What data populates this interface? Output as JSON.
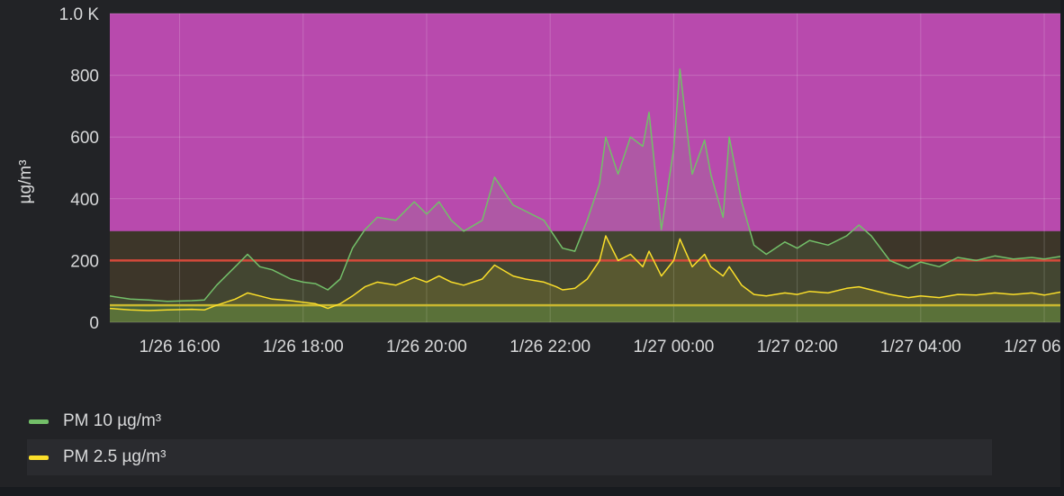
{
  "chart_data": {
    "type": "line",
    "ylabel": "µg/m³",
    "xlabel": "",
    "title": "",
    "ylim": [
      0,
      1000
    ],
    "yticks": [
      {
        "value": 0,
        "label": "0"
      },
      {
        "value": 200,
        "label": "200"
      },
      {
        "value": 400,
        "label": "400"
      },
      {
        "value": 600,
        "label": "600"
      },
      {
        "value": 800,
        "label": "800"
      },
      {
        "value": 1000,
        "label": "1.0 K"
      }
    ],
    "xticks": [
      {
        "hour": 16,
        "label": "1/26 16:00"
      },
      {
        "hour": 18,
        "label": "1/26 18:00"
      },
      {
        "hour": 20,
        "label": "1/26 20:00"
      },
      {
        "hour": 22,
        "label": "1/26 22:00"
      },
      {
        "hour": 24,
        "label": "1/27 00:00"
      },
      {
        "hour": 26,
        "label": "1/27 02:00"
      },
      {
        "hour": 28,
        "label": "1/27 04:00"
      },
      {
        "hour": 30,
        "label": "1/27 06:00"
      }
    ],
    "xrange_hours": [
      14.87,
      30.32
    ],
    "grid": true,
    "legend_position": "bottom-left",
    "threshold_bands": [
      {
        "from": 0,
        "to": 60,
        "color": "#3f5636"
      },
      {
        "from": 60,
        "to": 295,
        "color": "#3d3629"
      },
      {
        "from": 295,
        "to": 1000,
        "color": "#b84aad"
      }
    ],
    "threshold_lines": [
      {
        "value": 200,
        "color": "#d44a3a"
      },
      {
        "value": 55,
        "color": "#c9b62f"
      }
    ],
    "series": [
      {
        "name": "PM 10 µg/m³",
        "color": "#73bf69",
        "points": [
          [
            14.87,
            85
          ],
          [
            15.2,
            75
          ],
          [
            15.5,
            72
          ],
          [
            15.8,
            68
          ],
          [
            16.2,
            70
          ],
          [
            16.4,
            72
          ],
          [
            16.6,
            120
          ],
          [
            16.9,
            180
          ],
          [
            17.1,
            220
          ],
          [
            17.3,
            180
          ],
          [
            17.5,
            170
          ],
          [
            17.8,
            140
          ],
          [
            18.0,
            130
          ],
          [
            18.2,
            125
          ],
          [
            18.4,
            105
          ],
          [
            18.6,
            140
          ],
          [
            18.8,
            240
          ],
          [
            19.0,
            300
          ],
          [
            19.2,
            340
          ],
          [
            19.5,
            330
          ],
          [
            19.8,
            390
          ],
          [
            20.0,
            350
          ],
          [
            20.2,
            390
          ],
          [
            20.4,
            330
          ],
          [
            20.6,
            295
          ],
          [
            20.9,
            330
          ],
          [
            21.1,
            470
          ],
          [
            21.4,
            380
          ],
          [
            21.6,
            360
          ],
          [
            21.9,
            330
          ],
          [
            22.1,
            270
          ],
          [
            22.2,
            240
          ],
          [
            22.4,
            230
          ],
          [
            22.6,
            330
          ],
          [
            22.8,
            450
          ],
          [
            22.9,
            600
          ],
          [
            23.1,
            480
          ],
          [
            23.3,
            600
          ],
          [
            23.5,
            570
          ],
          [
            23.6,
            680
          ],
          [
            23.8,
            300
          ],
          [
            24.0,
            560
          ],
          [
            24.1,
            820
          ],
          [
            24.3,
            480
          ],
          [
            24.5,
            590
          ],
          [
            24.6,
            480
          ],
          [
            24.8,
            340
          ],
          [
            24.9,
            600
          ],
          [
            25.1,
            390
          ],
          [
            25.3,
            250
          ],
          [
            25.5,
            220
          ],
          [
            25.8,
            260
          ],
          [
            26.0,
            240
          ],
          [
            26.2,
            265
          ],
          [
            26.5,
            250
          ],
          [
            26.8,
            280
          ],
          [
            27.0,
            315
          ],
          [
            27.2,
            280
          ],
          [
            27.5,
            200
          ],
          [
            27.8,
            175
          ],
          [
            28.0,
            195
          ],
          [
            28.3,
            180
          ],
          [
            28.6,
            210
          ],
          [
            28.9,
            200
          ],
          [
            29.2,
            215
          ],
          [
            29.5,
            205
          ],
          [
            29.8,
            210
          ],
          [
            30.0,
            205
          ],
          [
            30.32,
            215
          ]
        ]
      },
      {
        "name": "PM 2.5 µg/m³",
        "color": "#fade2a",
        "points": [
          [
            14.87,
            45
          ],
          [
            15.2,
            40
          ],
          [
            15.5,
            38
          ],
          [
            15.8,
            40
          ],
          [
            16.2,
            42
          ],
          [
            16.4,
            40
          ],
          [
            16.6,
            55
          ],
          [
            16.9,
            75
          ],
          [
            17.1,
            95
          ],
          [
            17.3,
            85
          ],
          [
            17.5,
            75
          ],
          [
            17.8,
            70
          ],
          [
            18.0,
            65
          ],
          [
            18.2,
            60
          ],
          [
            18.4,
            45
          ],
          [
            18.6,
            60
          ],
          [
            18.8,
            85
          ],
          [
            19.0,
            115
          ],
          [
            19.2,
            130
          ],
          [
            19.5,
            120
          ],
          [
            19.8,
            145
          ],
          [
            20.0,
            130
          ],
          [
            20.2,
            150
          ],
          [
            20.4,
            130
          ],
          [
            20.6,
            120
          ],
          [
            20.9,
            140
          ],
          [
            21.1,
            185
          ],
          [
            21.4,
            150
          ],
          [
            21.6,
            140
          ],
          [
            21.9,
            130
          ],
          [
            22.1,
            115
          ],
          [
            22.2,
            105
          ],
          [
            22.4,
            110
          ],
          [
            22.6,
            140
          ],
          [
            22.8,
            200
          ],
          [
            22.9,
            280
          ],
          [
            23.1,
            200
          ],
          [
            23.3,
            220
          ],
          [
            23.5,
            180
          ],
          [
            23.6,
            230
          ],
          [
            23.8,
            150
          ],
          [
            24.0,
            200
          ],
          [
            24.1,
            270
          ],
          [
            24.3,
            180
          ],
          [
            24.5,
            220
          ],
          [
            24.6,
            180
          ],
          [
            24.8,
            150
          ],
          [
            24.9,
            180
          ],
          [
            25.1,
            120
          ],
          [
            25.3,
            90
          ],
          [
            25.5,
            85
          ],
          [
            25.8,
            95
          ],
          [
            26.0,
            90
          ],
          [
            26.2,
            100
          ],
          [
            26.5,
            95
          ],
          [
            26.8,
            110
          ],
          [
            27.0,
            115
          ],
          [
            27.2,
            105
          ],
          [
            27.5,
            90
          ],
          [
            27.8,
            80
          ],
          [
            28.0,
            85
          ],
          [
            28.3,
            80
          ],
          [
            28.6,
            90
          ],
          [
            28.9,
            88
          ],
          [
            29.2,
            95
          ],
          [
            29.5,
            90
          ],
          [
            29.8,
            95
          ],
          [
            30.0,
            88
          ],
          [
            30.32,
            100
          ]
        ]
      }
    ]
  },
  "legend": {
    "items": [
      {
        "label": "PM 10 µg/m³",
        "color": "#73bf69"
      },
      {
        "label": "PM 2.5 µg/m³",
        "color": "#fade2a"
      }
    ]
  }
}
